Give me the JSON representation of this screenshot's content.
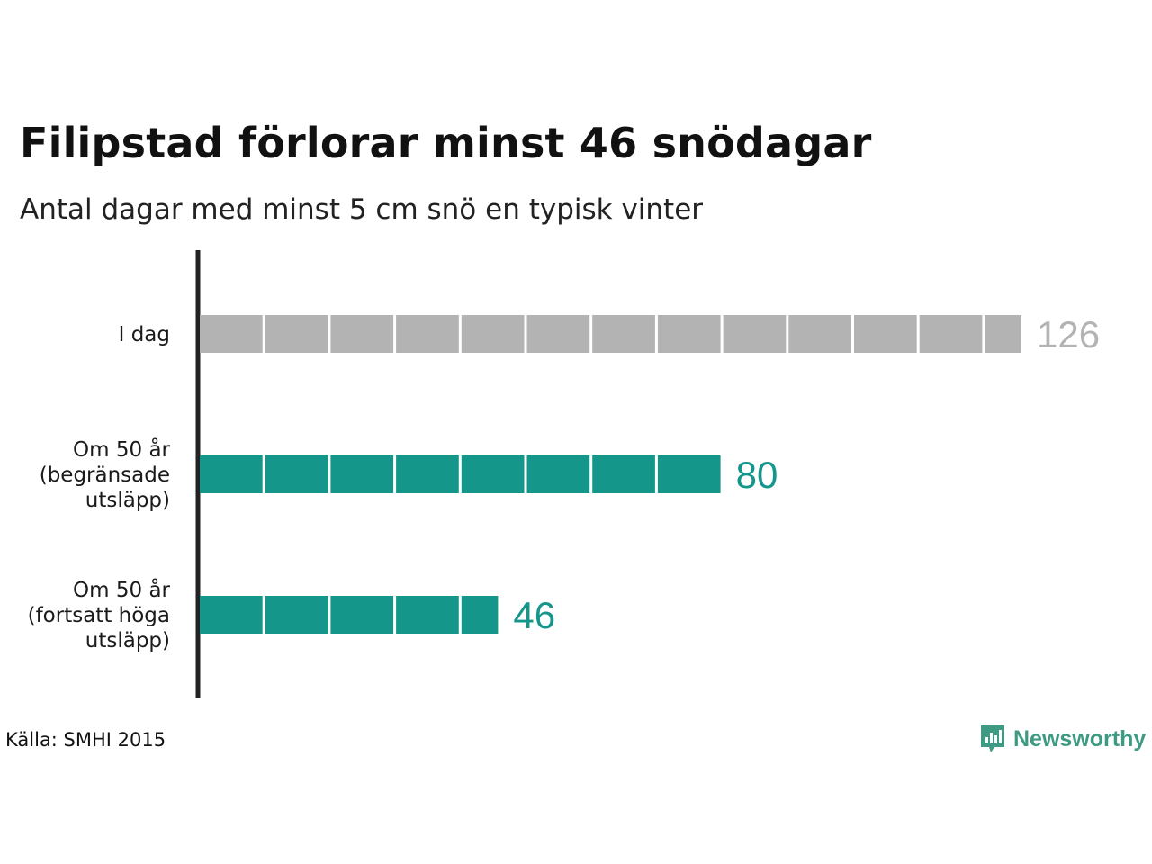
{
  "chart_data": {
    "type": "bar",
    "orientation": "horizontal",
    "title": "Filipstad förlorar minst 46 snödagar",
    "subtitle": "Antal dagar med minst 5 cm snö en typisk vinter",
    "categories": [
      [
        "I dag"
      ],
      [
        "Om 50 år",
        "(begränsade",
        "utsläpp)"
      ],
      [
        "Om 50 år",
        "(fortsatt höga",
        "utsläpp)"
      ]
    ],
    "values": [
      126,
      80,
      46
    ],
    "value_labels": [
      "126",
      "80",
      "46"
    ],
    "bar_colors": [
      "#b3b3b3",
      "#14978a",
      "#14978a"
    ],
    "label_colors": [
      "#b3b3b3",
      "#14978a",
      "#14978a"
    ],
    "segment_size": 10,
    "grid": false
  },
  "footer": {
    "source": "Källa: SMHI 2015",
    "brand": "Newsworthy",
    "brand_icon": "newsworthy-logo-icon",
    "brand_color": "#3e9a82"
  }
}
